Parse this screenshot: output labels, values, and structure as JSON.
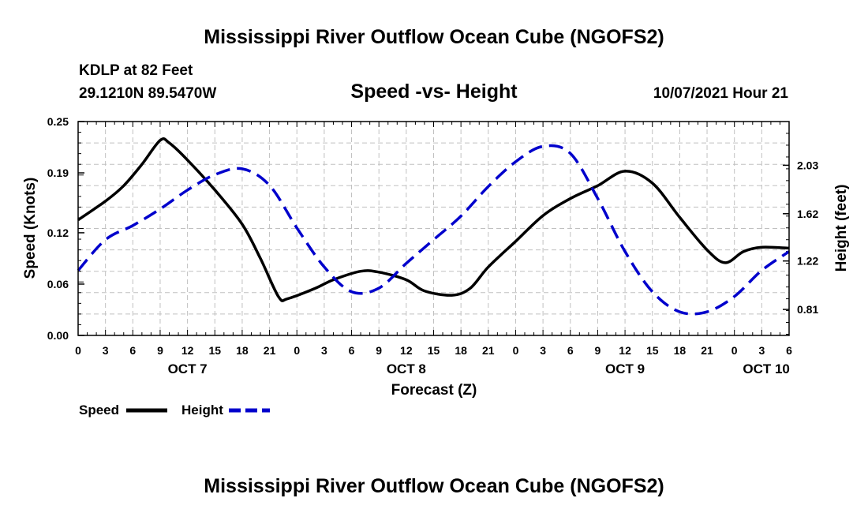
{
  "chart_data": {
    "type": "line",
    "title": "Mississippi River Outflow Ocean Cube (NGOFS2)",
    "footer_title": "Mississippi River Outflow Ocean Cube (NGOFS2)",
    "station": "KDLP at 82 Feet",
    "location": "29.1210N  89.5470W",
    "subtitle": "Speed -vs- Height",
    "run": "10/07/2021 Hour 21",
    "xlabel": "Forecast (Z)",
    "ylabel_left": "Speed (Knots)",
    "ylabel_right": "Height (feet)",
    "x_range_hours": [
      0,
      78
    ],
    "x_ticks": [
      0,
      3,
      6,
      9,
      12,
      15,
      18,
      21,
      24,
      27,
      30,
      33,
      36,
      39,
      42,
      45,
      48,
      51,
      54,
      57,
      60,
      63,
      66,
      69,
      72,
      75,
      78
    ],
    "x_tick_labels": [
      "0",
      "3",
      "6",
      "9",
      "12",
      "15",
      "18",
      "21",
      "0",
      "3",
      "6",
      "9",
      "12",
      "15",
      "18",
      "21",
      "0",
      "3",
      "6",
      "9",
      "12",
      "15",
      "18",
      "21",
      "0",
      "3",
      "6"
    ],
    "day_labels": [
      {
        "text": "OCT 7",
        "hour": 12
      },
      {
        "text": "OCT 8",
        "hour": 36
      },
      {
        "text": "OCT 9",
        "hour": 60
      },
      {
        "text": "OCT 10",
        "hour": 75.5
      }
    ],
    "left_axis": {
      "min": 0,
      "max": 0.25,
      "ticks": [
        0,
        0.06,
        0.12,
        0.19,
        0.25
      ],
      "labels": [
        "0.00",
        "0.06",
        "0.12",
        "0.19",
        "0.25"
      ]
    },
    "right_axis": {
      "min": 0.59,
      "max": 2.4,
      "ticks": [
        0.81,
        1.22,
        1.62,
        2.03
      ],
      "labels": [
        "0.81",
        "1.22",
        "1.62",
        "2.03"
      ]
    },
    "series": [
      {
        "name": "Speed",
        "axis": "left",
        "style": "solid",
        "color": "#000000",
        "x": [
          0,
          3,
          5,
          7,
          9,
          10,
          12,
          15,
          18,
          20,
          22,
          23,
          26,
          28,
          31,
          33,
          36,
          38,
          41,
          43,
          45,
          48,
          51,
          54,
          57,
          60,
          63,
          66,
          69,
          71,
          73,
          75,
          78
        ],
        "y": [
          0.135,
          0.157,
          0.175,
          0.2,
          0.228,
          0.225,
          0.205,
          0.17,
          0.13,
          0.09,
          0.045,
          0.043,
          0.055,
          0.065,
          0.075,
          0.074,
          0.065,
          0.052,
          0.047,
          0.055,
          0.08,
          0.11,
          0.14,
          0.16,
          0.175,
          0.192,
          0.178,
          0.138,
          0.1,
          0.085,
          0.098,
          0.103,
          0.102
        ]
      },
      {
        "name": "Height",
        "axis": "right",
        "style": "dashed",
        "color": "#0000cc",
        "x": [
          0,
          3,
          6,
          9,
          12,
          15,
          18,
          21,
          24,
          27,
          30,
          33,
          36,
          39,
          42,
          45,
          48,
          51,
          54,
          57,
          60,
          63,
          66,
          69,
          72,
          75,
          78
        ],
        "y": [
          1.14,
          1.4,
          1.52,
          1.66,
          1.82,
          1.95,
          2.0,
          1.86,
          1.5,
          1.17,
          0.96,
          0.99,
          1.2,
          1.4,
          1.6,
          1.85,
          2.06,
          2.19,
          2.13,
          1.75,
          1.3,
          0.96,
          0.79,
          0.79,
          0.92,
          1.14,
          1.3
        ]
      }
    ],
    "legend": [
      {
        "label": "Speed",
        "color": "#000000",
        "style": "solid"
      },
      {
        "label": "Height",
        "color": "#0000cc",
        "style": "dashed"
      }
    ],
    "grid": true
  }
}
